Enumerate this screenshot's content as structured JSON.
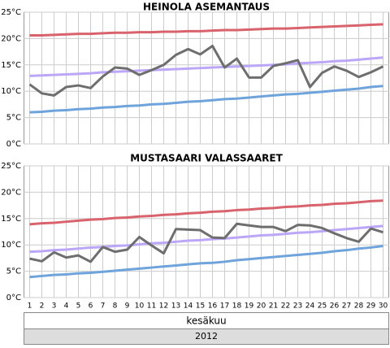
{
  "chart_data": [
    {
      "type": "line",
      "title": "HEINOLA ASEMANTAUS",
      "ylim": [
        0,
        25
      ],
      "yticks": [
        {
          "value": 0,
          "label": "0°C"
        },
        {
          "value": 5,
          "label": "5°C"
        },
        {
          "value": 10,
          "label": "10°C"
        },
        {
          "value": 15,
          "label": "15°C"
        },
        {
          "value": 20,
          "label": "20°C"
        },
        {
          "value": 25,
          "label": "25°C"
        }
      ],
      "grid": true,
      "series": [
        {
          "color": "#d9636c",
          "values": [
            20.6,
            20.6,
            20.7,
            20.8,
            20.9,
            20.9,
            21.0,
            21.1,
            21.1,
            21.2,
            21.2,
            21.3,
            21.3,
            21.4,
            21.4,
            21.5,
            21.6,
            21.6,
            21.7,
            21.8,
            21.9,
            21.9,
            22.0,
            22.1,
            22.2,
            22.3,
            22.4,
            22.5,
            22.6,
            22.7
          ]
        },
        {
          "color": "#bba6f8",
          "values": [
            12.9,
            13.0,
            13.1,
            13.2,
            13.3,
            13.4,
            13.6,
            13.7,
            13.8,
            13.9,
            14.0,
            14.1,
            14.2,
            14.3,
            14.4,
            14.5,
            14.6,
            14.7,
            14.8,
            14.9,
            15.0,
            15.1,
            15.3,
            15.4,
            15.5,
            15.7,
            15.8,
            16.0,
            16.2,
            16.4
          ]
        },
        {
          "color": "#6fa3dc",
          "values": [
            6.0,
            6.1,
            6.3,
            6.4,
            6.6,
            6.7,
            6.9,
            7.0,
            7.2,
            7.3,
            7.5,
            7.6,
            7.8,
            8.0,
            8.1,
            8.3,
            8.5,
            8.6,
            8.8,
            9.0,
            9.2,
            9.4,
            9.5,
            9.7,
            9.9,
            10.1,
            10.3,
            10.5,
            10.8,
            11.0
          ]
        },
        {
          "color": "#6e6e6e",
          "values": [
            11.3,
            9.6,
            9.2,
            10.8,
            11.1,
            10.6,
            12.8,
            14.5,
            14.3,
            13.1,
            14.0,
            15.0,
            16.9,
            18.0,
            17.0,
            18.6,
            14.5,
            16.2,
            12.6,
            12.6,
            14.8,
            15.3,
            15.9,
            10.8,
            13.5,
            14.7,
            13.9,
            12.7,
            13.6,
            14.7
          ]
        }
      ]
    },
    {
      "type": "line",
      "title": "MUSTASAARI VALASSAARET",
      "categories": [
        1,
        2,
        3,
        4,
        5,
        6,
        7,
        8,
        9,
        10,
        11,
        12,
        13,
        14,
        15,
        16,
        17,
        18,
        19,
        20,
        21,
        22,
        23,
        24,
        25,
        26,
        27,
        28,
        29,
        30
      ],
      "x_group_labels": [
        "kesäkuu",
        "2012"
      ],
      "ylim": [
        0,
        25
      ],
      "yticks": [
        {
          "value": 0,
          "label": "0°C"
        },
        {
          "value": 5,
          "label": "5°C"
        },
        {
          "value": 10,
          "label": "10°C"
        },
        {
          "value": 15,
          "label": "15°C"
        },
        {
          "value": 20,
          "label": "20°C"
        },
        {
          "value": 25,
          "label": "25°C"
        }
      ],
      "grid": true,
      "series": [
        {
          "color": "#d9636c",
          "values": [
            13.9,
            14.1,
            14.2,
            14.4,
            14.6,
            14.8,
            14.9,
            15.1,
            15.2,
            15.4,
            15.5,
            15.7,
            15.8,
            16.0,
            16.1,
            16.3,
            16.4,
            16.6,
            16.7,
            16.9,
            17.0,
            17.2,
            17.3,
            17.5,
            17.6,
            17.8,
            17.9,
            18.1,
            18.3,
            18.4
          ]
        },
        {
          "color": "#bba6f8",
          "values": [
            8.7,
            8.8,
            9.0,
            9.1,
            9.3,
            9.5,
            9.6,
            9.8,
            9.9,
            10.1,
            10.3,
            10.4,
            10.6,
            10.8,
            10.9,
            11.1,
            11.2,
            11.4,
            11.6,
            11.8,
            11.9,
            12.1,
            12.3,
            12.4,
            12.6,
            12.8,
            13.0,
            13.2,
            13.4,
            13.6
          ]
        },
        {
          "color": "#6fa3dc",
          "values": [
            3.9,
            4.1,
            4.3,
            4.4,
            4.6,
            4.7,
            4.9,
            5.1,
            5.3,
            5.5,
            5.7,
            5.9,
            6.1,
            6.3,
            6.5,
            6.6,
            6.8,
            7.1,
            7.3,
            7.5,
            7.7,
            7.9,
            8.1,
            8.3,
            8.5,
            8.8,
            9.0,
            9.3,
            9.5,
            9.8
          ]
        },
        {
          "color": "#6e6e6e",
          "values": [
            7.4,
            6.9,
            8.6,
            7.6,
            8.0,
            6.8,
            9.6,
            8.7,
            9.1,
            11.5,
            9.9,
            8.4,
            13.0,
            12.9,
            12.8,
            11.4,
            11.3,
            14.0,
            13.7,
            13.4,
            13.4,
            12.6,
            13.8,
            13.7,
            13.2,
            12.2,
            11.3,
            10.6,
            13.1,
            12.4
          ]
        }
      ]
    }
  ]
}
